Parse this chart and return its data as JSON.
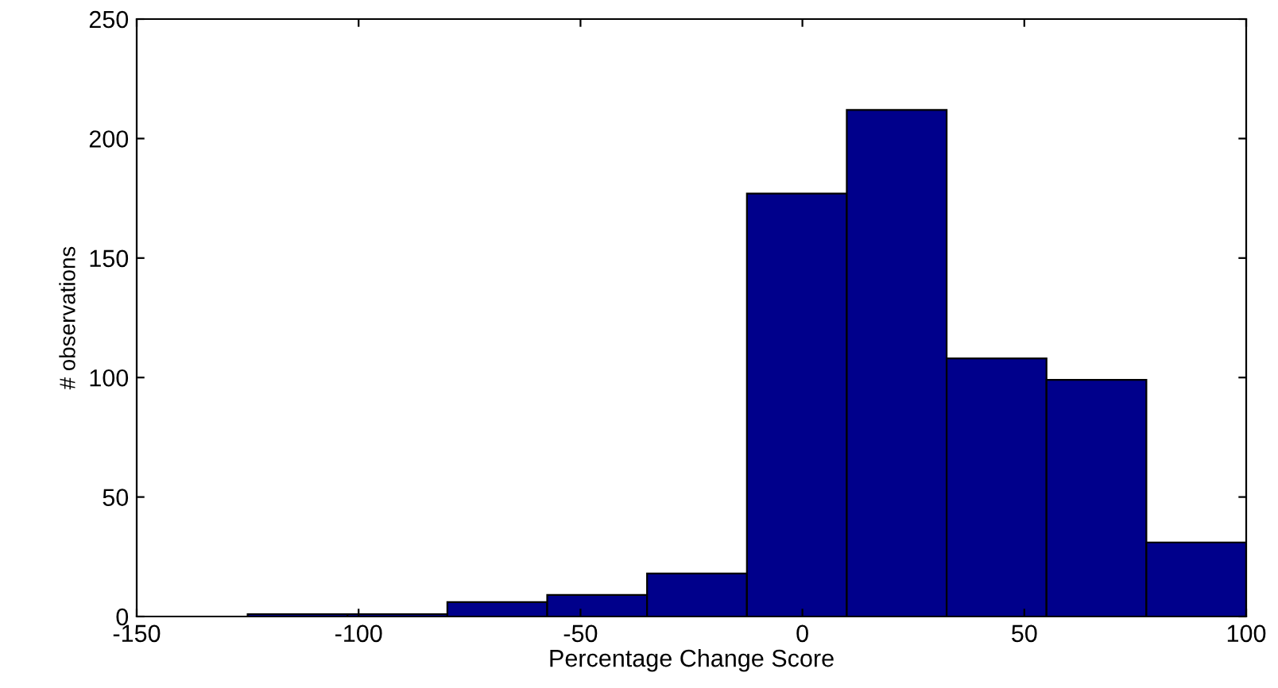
{
  "chart_data": {
    "type": "histogram",
    "xlabel": "Percentage Change Score",
    "ylabel": "# observations",
    "bins": [
      -125,
      -102.5,
      -80,
      -57.5,
      -35,
      -12.5,
      10,
      32.5,
      55,
      77.5,
      100
    ],
    "values": [
      1,
      1,
      6,
      9,
      18,
      177,
      212,
      108,
      99,
      31
    ],
    "color": "#00008b",
    "xlim": [
      -150,
      100
    ],
    "xticks": [
      -150,
      -100,
      -50,
      0,
      50,
      100
    ],
    "ylim": [
      0,
      250
    ],
    "yticks": [
      0,
      50,
      100,
      150,
      200,
      250
    ]
  }
}
